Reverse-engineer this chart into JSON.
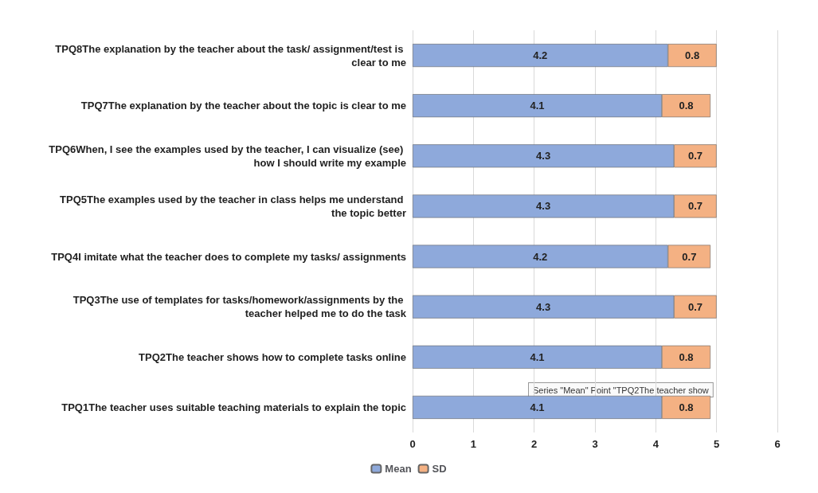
{
  "chart_data": {
    "type": "bar",
    "orientation": "horizontal",
    "stacked": true,
    "data_labels": true,
    "grid": "x",
    "legend": "bottom",
    "categories": [
      "TPQ8The explanation by the teacher about the task/ assignment/test is clear to me",
      "TPQ7The explanation by the teacher about the topic is clear to me",
      "TPQ6When, I see the examples used by the teacher, I can visualize (see) how I should write my example",
      "TPQ5The examples used by the teacher in class helps me understand the topic better",
      "TPQ4I imitate what the teacher does to complete my tasks/ assignments",
      "TPQ3The use of templates for tasks/homework/assignments by the teacher helped me to do the task",
      "TPQ2The teacher shows how to complete tasks online",
      "TPQ1The teacher uses suitable teaching materials to explain the topic"
    ],
    "series": [
      {
        "name": "Mean",
        "color": "#8ea9db",
        "values": [
          4.2,
          4.1,
          4.3,
          4.3,
          4.2,
          4.3,
          4.1,
          4.1
        ]
      },
      {
        "name": "SD",
        "color": "#f4b183",
        "values": [
          0.8,
          0.8,
          0.7,
          0.7,
          0.7,
          0.7,
          0.8,
          0.8
        ]
      }
    ],
    "xlim": [
      0,
      6
    ],
    "xticks": [
      0,
      1,
      2,
      3,
      4,
      5,
      6
    ],
    "annotations": [
      "Series \"Mean\" Point \"TPQ2The teacher show"
    ]
  }
}
